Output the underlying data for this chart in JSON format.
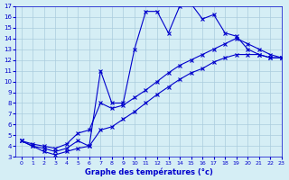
{
  "line1_x": [
    0,
    1,
    2,
    3,
    4,
    5,
    6,
    7,
    8,
    9,
    10,
    11,
    12,
    13,
    14,
    15,
    16,
    17,
    18,
    19,
    20,
    21,
    22,
    23
  ],
  "line1_y": [
    4.5,
    4.0,
    3.5,
    3.2,
    3.5,
    3.8,
    4.0,
    11.0,
    8.0,
    8.0,
    13.0,
    16.5,
    16.5,
    14.5,
    17.0,
    17.2,
    15.8,
    16.2,
    14.5,
    14.2,
    13.0,
    12.5,
    12.2,
    12.2
  ],
  "line2_x": [
    0,
    1,
    2,
    3,
    4,
    5,
    6,
    7,
    8,
    9,
    10,
    11,
    12,
    13,
    14,
    15,
    16,
    17,
    18,
    19,
    20,
    21,
    22,
    23
  ],
  "line2_y": [
    4.5,
    4.2,
    4.0,
    3.8,
    4.2,
    5.2,
    5.5,
    8.0,
    7.5,
    7.8,
    8.5,
    9.2,
    10.0,
    10.8,
    11.5,
    12.0,
    12.5,
    13.0,
    13.5,
    14.0,
    13.5,
    13.0,
    12.5,
    12.2
  ],
  "line3_x": [
    0,
    1,
    2,
    3,
    4,
    5,
    6,
    7,
    8,
    9,
    10,
    11,
    12,
    13,
    14,
    15,
    16,
    17,
    18,
    19,
    20,
    21,
    22,
    23
  ],
  "line3_y": [
    4.5,
    4.0,
    3.8,
    3.5,
    3.8,
    4.5,
    4.0,
    5.5,
    5.8,
    6.5,
    7.2,
    8.0,
    8.8,
    9.5,
    10.2,
    10.8,
    11.2,
    11.8,
    12.2,
    12.5,
    12.5,
    12.5,
    12.2,
    12.2
  ],
  "line_color": "#0000cc",
  "bg_color": "#d5eef5",
  "grid_color": "#aaccdd",
  "xlabel": "Graphe des températures (°c)",
  "xlim": [
    -0.5,
    23
  ],
  "ylim": [
    3,
    17
  ],
  "xticks": [
    0,
    1,
    2,
    3,
    4,
    5,
    6,
    7,
    8,
    9,
    10,
    11,
    12,
    13,
    14,
    15,
    16,
    17,
    18,
    19,
    20,
    21,
    22,
    23
  ],
  "yticks": [
    3,
    4,
    5,
    6,
    7,
    8,
    9,
    10,
    11,
    12,
    13,
    14,
    15,
    16,
    17
  ]
}
